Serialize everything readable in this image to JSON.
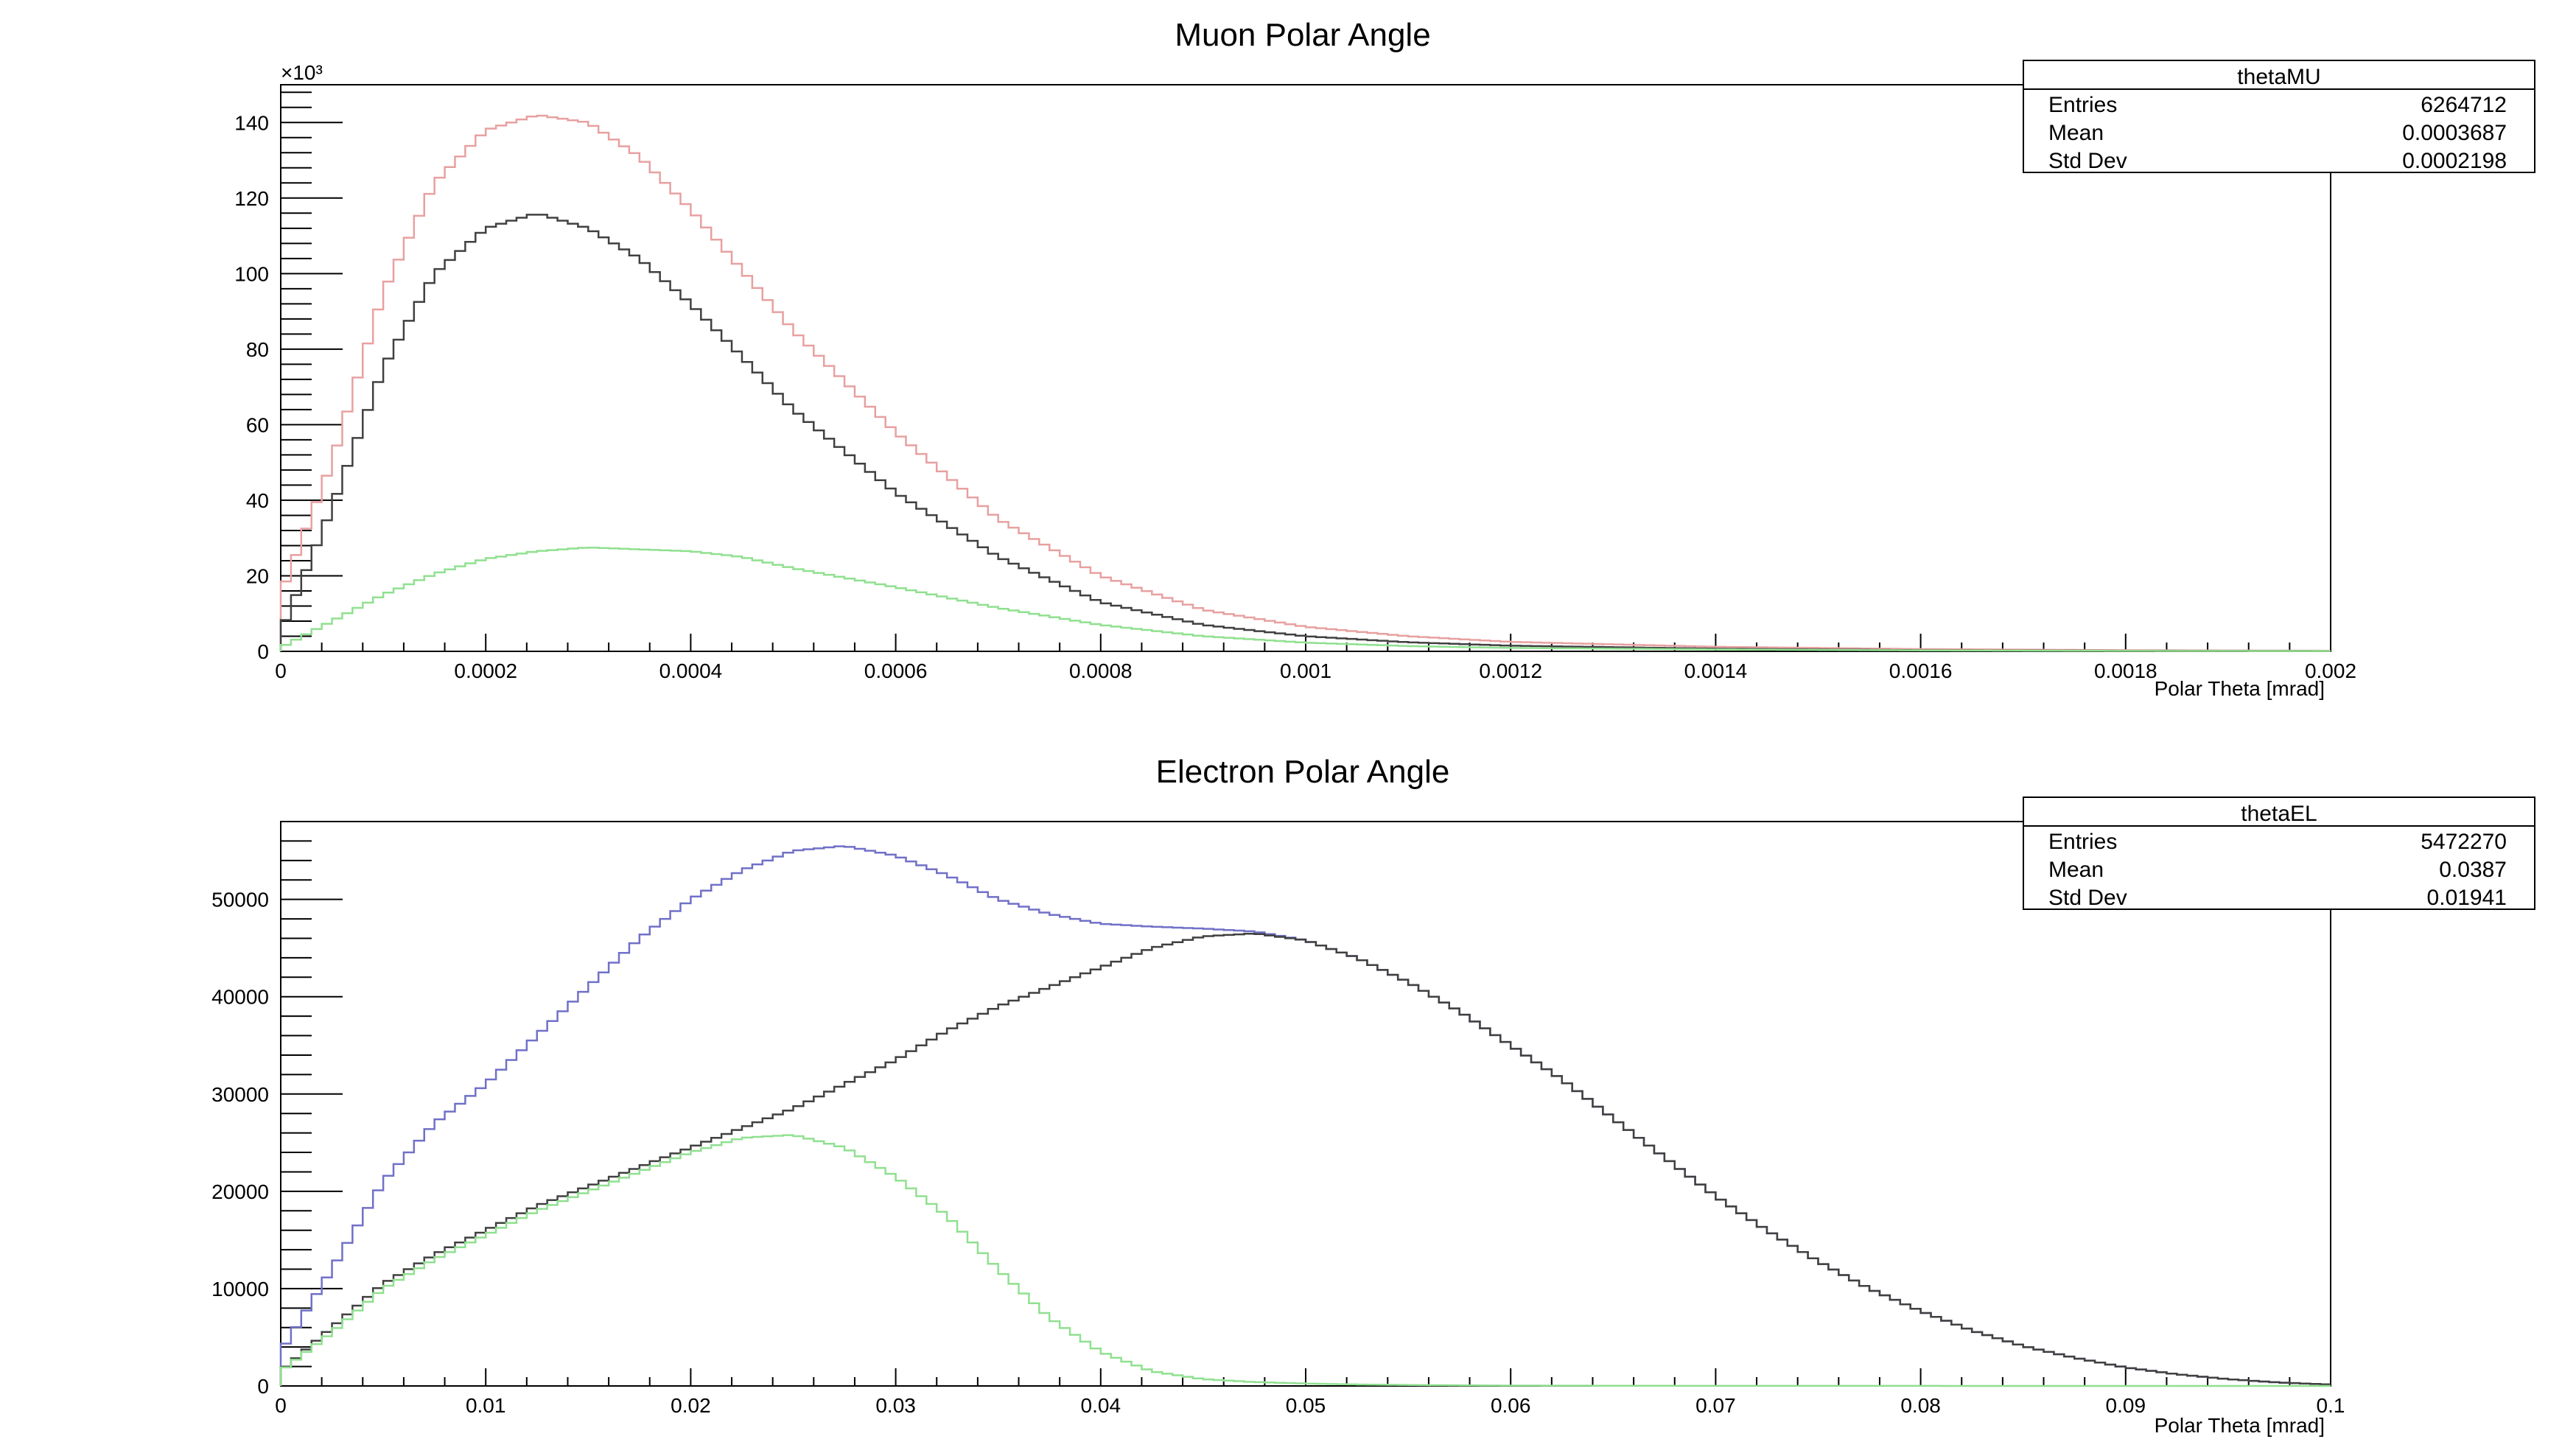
{
  "chart_data": [
    {
      "type": "line",
      "title": "Muon Polar Angle",
      "xlabel": "Polar Theta [mrad]",
      "ylabel": "",
      "xlim": [
        0,
        0.002
      ],
      "ylim": [
        0,
        150000
      ],
      "x_ticks": [
        "0",
        "0.0002",
        "0.0004",
        "0.0006",
        "0.0008",
        "0.001",
        "0.0012",
        "0.0014",
        "0.0016",
        "0.0018",
        "0.002"
      ],
      "y_ticks": [
        "0",
        "20",
        "40",
        "60",
        "80",
        "100",
        "120",
        "140"
      ],
      "y_multiplier_label": "×10³",
      "stats": {
        "name": "thetaMU",
        "rows": [
          {
            "label": "Entries",
            "value": "6264712"
          },
          {
            "label": "Mean",
            "value": "0.0003687"
          },
          {
            "label": "Std Dev",
            "value": "0.0002198"
          }
        ]
      },
      "series": [
        {
          "color": "#e8a0a0",
          "x": [
            0,
            5e-05,
            0.0001,
            0.00015,
            0.0002,
            0.00025,
            0.0003,
            0.00035,
            0.0004,
            0.00045,
            0.0005,
            0.0006,
            0.0007,
            0.0008,
            0.0009,
            0.001,
            0.0011,
            0.0012,
            0.0014,
            0.0016,
            0.0018,
            0.002
          ],
          "y": [
            15000,
            50000,
            95000,
            124000,
            138000,
            142000,
            140000,
            131000,
            117000,
            101000,
            85000,
            58000,
            35000,
            20000,
            11000,
            6500,
            4000,
            2500,
            1200,
            600,
            300,
            150
          ]
        },
        {
          "color": "#404040",
          "x": [
            0,
            5e-05,
            0.0001,
            0.00015,
            0.0002,
            0.00025,
            0.0003,
            0.00035,
            0.0004,
            0.00045,
            0.0005,
            0.0006,
            0.0007,
            0.0008,
            0.0009,
            0.001,
            0.0011,
            0.0012,
            0.0014,
            0.0016,
            0.0018,
            0.002
          ],
          "y": [
            5000,
            38000,
            75000,
            100000,
            112000,
            116000,
            112000,
            104000,
            92000,
            78000,
            64000,
            42000,
            25000,
            13000,
            7000,
            4000,
            2400,
            1500,
            700,
            300,
            150,
            80
          ]
        },
        {
          "color": "#90e090",
          "x": [
            0,
            5e-05,
            0.0001,
            0.00015,
            0.0002,
            0.00025,
            0.0003,
            0.00035,
            0.0004,
            0.00045,
            0.0005,
            0.0006,
            0.0007,
            0.0008,
            0.0009,
            0.001,
            0.0011,
            0.0012,
            0.0014,
            0.0016,
            0.0018,
            0.002
          ],
          "y": [
            1000,
            8000,
            15000,
            20500,
            24500,
            26500,
            27500,
            27000,
            26500,
            25000,
            22000,
            17000,
            11500,
            7000,
            4000,
            2300,
            1400,
            900,
            500,
            250,
            120,
            60
          ]
        }
      ]
    },
    {
      "type": "line",
      "title": "Electron Polar Angle",
      "xlabel": "Polar Theta [mrad]",
      "ylabel": "",
      "xlim": [
        0,
        0.1
      ],
      "ylim": [
        0,
        58000
      ],
      "x_ticks": [
        "0",
        "0.01",
        "0.02",
        "0.03",
        "0.04",
        "0.05",
        "0.06",
        "0.07",
        "0.08",
        "0.09",
        "0.1"
      ],
      "y_ticks": [
        "0",
        "10000",
        "20000",
        "30000",
        "40000",
        "50000"
      ],
      "stats": {
        "name": "thetaEL",
        "rows": [
          {
            "label": "Entries",
            "value": "5472270"
          },
          {
            "label": "Mean",
            "value": "0.0387"
          },
          {
            "label": "Std Dev",
            "value": "0.01941"
          }
        ]
      },
      "series": [
        {
          "color": "#7070c8",
          "x": [
            0,
            0.0025,
            0.005,
            0.0075,
            0.01,
            0.0125,
            0.015,
            0.0175,
            0.02,
            0.0225,
            0.025,
            0.0275,
            0.03,
            0.0325,
            0.035,
            0.0375,
            0.04,
            0.0425,
            0.045,
            0.0475,
            0.05,
            0.0525,
            0.055,
            0.0575,
            0.06,
            0.0625,
            0.065,
            0.0675,
            0.07,
            0.0725,
            0.075,
            0.0775,
            0.08,
            0.0825,
            0.085,
            0.0875,
            0.09,
            0.0925,
            0.095,
            0.0975,
            0.1
          ],
          "y": [
            3500,
            12000,
            21000,
            27000,
            31000,
            36000,
            41000,
            46000,
            50000,
            53000,
            55000,
            55500,
            54500,
            52500,
            50000,
            48500,
            47500,
            47200,
            47000,
            46700,
            45800,
            44000,
            41500,
            38500,
            35000,
            31500,
            27500,
            23500,
            19500,
            16000,
            12800,
            10000,
            7700,
            5700,
            4100,
            2900,
            1900,
            1200,
            700,
            350,
            150
          ]
        },
        {
          "color": "#404040",
          "x": [
            0,
            0.0025,
            0.005,
            0.0075,
            0.01,
            0.0125,
            0.015,
            0.0175,
            0.02,
            0.0225,
            0.025,
            0.0275,
            0.03,
            0.0325,
            0.035,
            0.0375,
            0.04,
            0.0425,
            0.045,
            0.0475,
            0.05,
            0.0525,
            0.055,
            0.0575,
            0.06,
            0.0625,
            0.065,
            0.0675,
            0.07,
            0.0725,
            0.075,
            0.0775,
            0.08,
            0.0825,
            0.085,
            0.0875,
            0.09,
            0.0925,
            0.095,
            0.0975,
            0.1
          ],
          "y": [
            1500,
            6000,
            10500,
            13500,
            16000,
            18500,
            20500,
            22500,
            24500,
            26500,
            28500,
            31000,
            33500,
            36500,
            39000,
            41000,
            43000,
            45000,
            46200,
            46500,
            45800,
            44000,
            41500,
            38500,
            35000,
            31500,
            27500,
            23500,
            19500,
            16000,
            12800,
            10000,
            7700,
            5700,
            4100,
            2900,
            1900,
            1200,
            700,
            350,
            150
          ]
        },
        {
          "color": "#90e090",
          "x": [
            0,
            0.0025,
            0.005,
            0.0075,
            0.01,
            0.0125,
            0.015,
            0.0175,
            0.02,
            0.0225,
            0.025,
            0.0275,
            0.03,
            0.0325,
            0.035,
            0.0375,
            0.04,
            0.0425,
            0.045,
            0.0475,
            0.05,
            0.0525,
            0.055,
            0.0575,
            0.06,
            0.065,
            0.07,
            0.08,
            0.09,
            0.1
          ],
          "y": [
            1500,
            5500,
            10000,
            13000,
            15500,
            18000,
            20000,
            22000,
            24000,
            25500,
            25800,
            24500,
            21500,
            17500,
            12000,
            7000,
            3500,
            1500,
            700,
            400,
            250,
            150,
            100,
            60,
            40,
            20,
            10,
            5,
            2,
            1
          ]
        }
      ]
    }
  ]
}
